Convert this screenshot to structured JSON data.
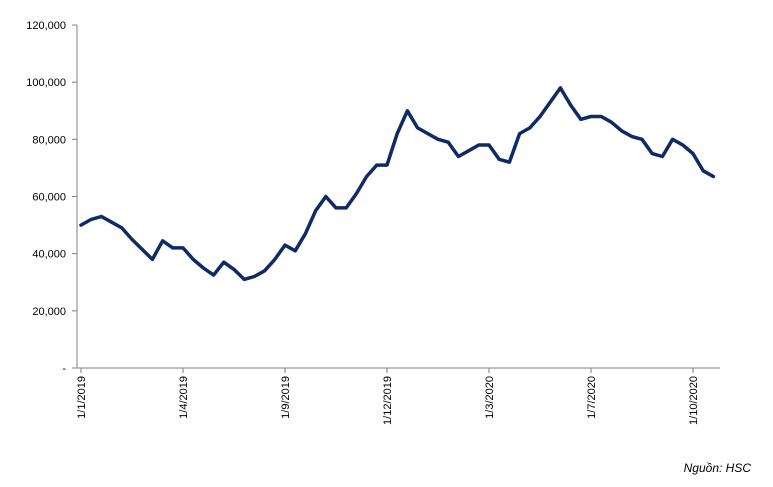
{
  "chart_data": {
    "type": "line",
    "title": "",
    "xlabel": "",
    "ylabel": "",
    "ylim": [
      0,
      120000
    ],
    "y_ticks": [
      {
        "value": 0,
        "label": "-"
      },
      {
        "value": 20000,
        "label": "20,000"
      },
      {
        "value": 40000,
        "label": "40,000"
      },
      {
        "value": 60000,
        "label": "60,000"
      },
      {
        "value": 80000,
        "label": "80,000"
      },
      {
        "value": 100000,
        "label": "100,000"
      },
      {
        "value": 120000,
        "label": "120,000"
      }
    ],
    "x_ticks": [
      {
        "label": "1/1/2019",
        "index": 0
      },
      {
        "label": "1/4/2019",
        "index": 10
      },
      {
        "label": "1/9/2019",
        "index": 20
      },
      {
        "label": "1/12/2019",
        "index": 30
      },
      {
        "label": "1/3/2020",
        "index": 40
      },
      {
        "label": "1/7/2020",
        "index": 50
      },
      {
        "label": "1/10/2020",
        "index": 60
      }
    ],
    "grid": false,
    "legend": "none",
    "line_color": "#0f2a66",
    "series": [
      {
        "values": [
          50000,
          52000,
          53000,
          51000,
          49000,
          45000,
          41500,
          38000,
          44500,
          42000,
          42000,
          38000,
          35000,
          32500,
          37000,
          34500,
          31000,
          32000,
          34000,
          38000,
          43000,
          41000,
          47000,
          55000,
          60000,
          56000,
          56000,
          61000,
          67000,
          71000,
          71000,
          82000,
          90000,
          84000,
          82000,
          80000,
          79000,
          74000,
          76000,
          78000,
          78000,
          73000,
          72000,
          82000,
          84000,
          88000,
          93000,
          98000,
          92000,
          87000,
          88000,
          88000,
          86000,
          83000,
          81000,
          80000,
          75000,
          74000,
          80000,
          78000,
          75000,
          69000,
          67000
        ]
      }
    ]
  },
  "source_note": "Nguồn: HSC"
}
